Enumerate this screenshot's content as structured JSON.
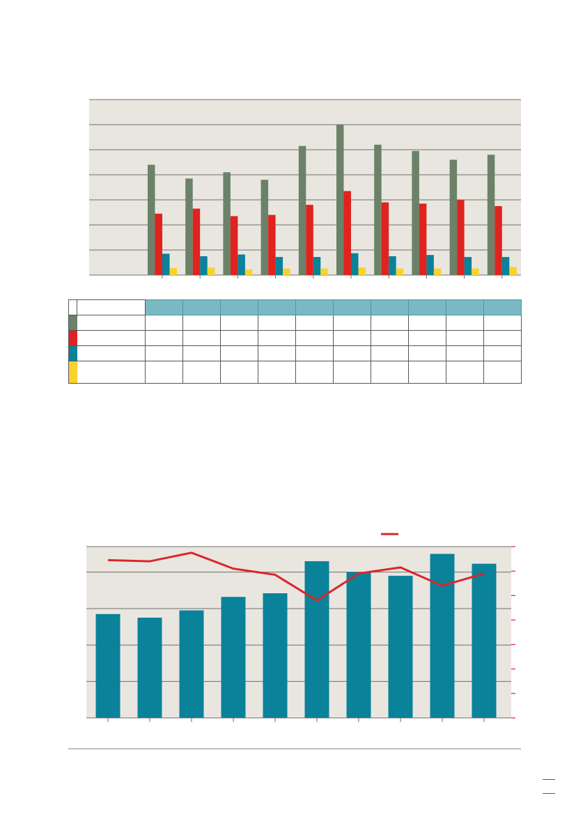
{
  "colors": {
    "panel_bg": "#e9e6e0",
    "grid": "#6e6e6e",
    "series_green": "#6b8269",
    "series_red": "#e0231f",
    "series_teal": "#0a8299",
    "series_yellow": "#f9d22b",
    "header_teal": "#7ab9c3",
    "line_red": "#d9262b"
  },
  "chart_data": [
    {
      "type": "bar",
      "title": "",
      "xlabel": "",
      "ylabel": "",
      "categories": [
        "",
        "",
        "",
        "",
        "",
        "",
        "",
        "",
        "",
        ""
      ],
      "ylim": [
        0,
        7
      ],
      "grid": true,
      "series": [
        {
          "values": [
            4.4,
            3.85,
            4.1,
            3.8,
            5.15,
            6.0,
            5.2,
            4.95,
            4.6,
            4.8
          ]
        },
        {
          "values": [
            2.45,
            2.65,
            2.35,
            2.4,
            2.8,
            3.35,
            2.9,
            2.85,
            3.0,
            2.75
          ]
        },
        {
          "values": [
            0.85,
            0.75,
            0.82,
            0.72,
            0.72,
            0.87,
            0.75,
            0.8,
            0.72,
            0.72
          ]
        },
        {
          "values": [
            0.28,
            0.3,
            0.22,
            0.26,
            0.26,
            0.3,
            0.26,
            0.26,
            0.26,
            0.32
          ]
        }
      ],
      "legend": "table-below"
    },
    {
      "type": "bar",
      "title": "",
      "xlabel": "",
      "ylabel": "",
      "categories": [
        "",
        "",
        "",
        "",
        "",
        "",
        "",
        "",
        "",
        ""
      ],
      "ylim": [
        0,
        4.7
      ],
      "grid": true,
      "series": [
        {
          "type": "bar",
          "values": [
            2.85,
            2.75,
            2.95,
            3.32,
            3.42,
            4.3,
            4.0,
            3.9,
            4.5,
            4.23
          ]
        },
        {
          "type": "line",
          "axis": "right",
          "values": [
            6.45,
            6.4,
            6.75,
            6.1,
            5.85,
            4.8,
            5.9,
            6.15,
            5.4,
            5.9
          ]
        }
      ],
      "y2lim": [
        0,
        7
      ],
      "legend": "top-right"
    }
  ],
  "legend_table": {
    "years": [
      "",
      "",
      "",
      "",
      "",
      "",
      "",
      "",
      "",
      ""
    ],
    "rows": [
      {
        "color": "#6b8269",
        "label": "",
        "values": [
          "",
          "",
          "",
          "",
          "",
          "",
          "",
          "",
          "",
          ""
        ]
      },
      {
        "color": "#e0231f",
        "label": "",
        "values": [
          "",
          "",
          "",
          "",
          "",
          "",
          "",
          "",
          "",
          ""
        ]
      },
      {
        "color": "#0a8299",
        "label": "",
        "values": [
          "",
          "",
          "",
          "",
          "",
          "",
          "",
          "",
          "",
          ""
        ]
      },
      {
        "color": "#f9d22b",
        "label": "",
        "values": [
          "",
          "",
          "",
          "",
          "",
          "",
          "",
          "",
          "",
          ""
        ]
      }
    ]
  }
}
